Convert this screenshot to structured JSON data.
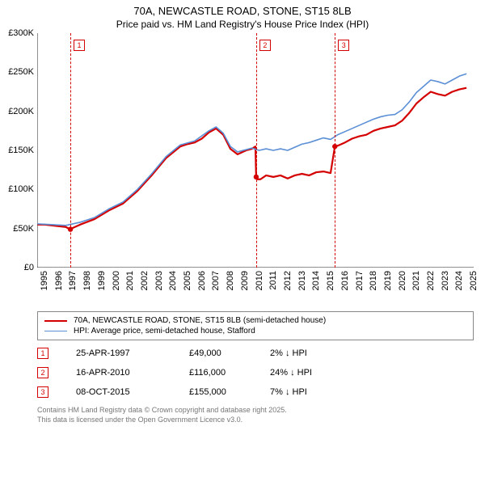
{
  "title": "70A, NEWCASTLE ROAD, STONE, ST15 8LB",
  "subtitle": "Price paid vs. HM Land Registry's House Price Index (HPI)",
  "chart": {
    "type": "line",
    "background_color": "#ffffff",
    "axis_color": "#222222",
    "xlim": [
      1995,
      2025.5
    ],
    "ylim": [
      0,
      300000
    ],
    "ytick_step": 50000,
    "yticks": [
      {
        "v": 0,
        "label": "£0"
      },
      {
        "v": 50000,
        "label": "£50K"
      },
      {
        "v": 100000,
        "label": "£100K"
      },
      {
        "v": 150000,
        "label": "£150K"
      },
      {
        "v": 200000,
        "label": "£200K"
      },
      {
        "v": 250000,
        "label": "£250K"
      },
      {
        "v": 300000,
        "label": "£300K"
      }
    ],
    "xticks": [
      1995,
      1996,
      1997,
      1998,
      1999,
      2000,
      2001,
      2002,
      2003,
      2004,
      2005,
      2006,
      2007,
      2008,
      2009,
      2010,
      2011,
      2012,
      2013,
      2014,
      2015,
      2016,
      2017,
      2018,
      2019,
      2020,
      2021,
      2022,
      2023,
      2024,
      2025
    ],
    "label_fontsize": 11,
    "series": [
      {
        "id": "price_paid",
        "label": "70A, NEWCASTLE ROAD, STONE, ST15 8LB (semi-detached house)",
        "color": "#d40000",
        "line_width": 2.2,
        "points": [
          [
            1995,
            55000
          ],
          [
            1995.5,
            55000
          ],
          [
            1996,
            54000
          ],
          [
            1996.5,
            53000
          ],
          [
            1997,
            52000
          ],
          [
            1997.3,
            49000
          ],
          [
            1997.32,
            49000
          ],
          [
            1997.4,
            50000
          ],
          [
            1998,
            55000
          ],
          [
            1999,
            62000
          ],
          [
            2000,
            73000
          ],
          [
            2001,
            82000
          ],
          [
            2002,
            98000
          ],
          [
            2003,
            118000
          ],
          [
            2004,
            140000
          ],
          [
            2005,
            155000
          ],
          [
            2005.5,
            158000
          ],
          [
            2006,
            160000
          ],
          [
            2006.5,
            165000
          ],
          [
            2007,
            173000
          ],
          [
            2007.5,
            178000
          ],
          [
            2008,
            170000
          ],
          [
            2008.5,
            152000
          ],
          [
            2009,
            145000
          ],
          [
            2009.6,
            150000
          ],
          [
            2010,
            152000
          ],
          [
            2010.25,
            155000
          ],
          [
            2010.3,
            116000
          ],
          [
            2010.35,
            116000
          ],
          [
            2010.4,
            113000
          ],
          [
            2010.6,
            113000
          ],
          [
            2011,
            118000
          ],
          [
            2011.5,
            116000
          ],
          [
            2012,
            118000
          ],
          [
            2012.5,
            114000
          ],
          [
            2013,
            118000
          ],
          [
            2013.5,
            120000
          ],
          [
            2014,
            118000
          ],
          [
            2014.5,
            122000
          ],
          [
            2015,
            123000
          ],
          [
            2015.5,
            121000
          ],
          [
            2015.8,
            155000
          ],
          [
            2015.85,
            155000
          ],
          [
            2016,
            156000
          ],
          [
            2016.5,
            160000
          ],
          [
            2017,
            165000
          ],
          [
            2017.5,
            168000
          ],
          [
            2018,
            170000
          ],
          [
            2018.5,
            175000
          ],
          [
            2019,
            178000
          ],
          [
            2019.5,
            180000
          ],
          [
            2020,
            182000
          ],
          [
            2020.5,
            188000
          ],
          [
            2021,
            198000
          ],
          [
            2021.5,
            210000
          ],
          [
            2022,
            218000
          ],
          [
            2022.5,
            225000
          ],
          [
            2023,
            222000
          ],
          [
            2023.5,
            220000
          ],
          [
            2024,
            225000
          ],
          [
            2024.5,
            228000
          ],
          [
            2025,
            230000
          ]
        ],
        "markers": [
          [
            1997.32,
            49000
          ],
          [
            2010.3,
            116000
          ],
          [
            2015.8,
            155000
          ]
        ]
      },
      {
        "id": "hpi",
        "label": "HPI: Average price, semi-detached house, Stafford",
        "color": "#5b8fd6",
        "line_width": 1.6,
        "points": [
          [
            1995,
            56000
          ],
          [
            1996,
            55000
          ],
          [
            1997,
            54000
          ],
          [
            1998,
            58000
          ],
          [
            1999,
            64000
          ],
          [
            2000,
            75000
          ],
          [
            2001,
            84000
          ],
          [
            2002,
            100000
          ],
          [
            2003,
            120000
          ],
          [
            2004,
            142000
          ],
          [
            2005,
            157000
          ],
          [
            2006,
            162000
          ],
          [
            2007,
            175000
          ],
          [
            2007.5,
            180000
          ],
          [
            2008,
            172000
          ],
          [
            2008.5,
            155000
          ],
          [
            2009,
            148000
          ],
          [
            2010,
            153000
          ],
          [
            2010.5,
            150000
          ],
          [
            2011,
            152000
          ],
          [
            2011.5,
            150000
          ],
          [
            2012,
            152000
          ],
          [
            2012.5,
            150000
          ],
          [
            2013,
            154000
          ],
          [
            2013.5,
            158000
          ],
          [
            2014,
            160000
          ],
          [
            2014.5,
            163000
          ],
          [
            2015,
            166000
          ],
          [
            2015.5,
            164000
          ],
          [
            2016,
            170000
          ],
          [
            2016.5,
            174000
          ],
          [
            2017,
            178000
          ],
          [
            2017.5,
            182000
          ],
          [
            2018,
            186000
          ],
          [
            2018.5,
            190000
          ],
          [
            2019,
            193000
          ],
          [
            2019.5,
            195000
          ],
          [
            2020,
            196000
          ],
          [
            2020.5,
            202000
          ],
          [
            2021,
            212000
          ],
          [
            2021.5,
            224000
          ],
          [
            2022,
            232000
          ],
          [
            2022.5,
            240000
          ],
          [
            2023,
            238000
          ],
          [
            2023.5,
            235000
          ],
          [
            2024,
            240000
          ],
          [
            2024.5,
            245000
          ],
          [
            2025,
            248000
          ]
        ]
      }
    ],
    "event_markers": [
      {
        "n": "1",
        "x": 1997.32,
        "color": "#d40000"
      },
      {
        "n": "2",
        "x": 2010.3,
        "color": "#d40000"
      },
      {
        "n": "3",
        "x": 2015.8,
        "color": "#d40000"
      }
    ]
  },
  "legend": {
    "border_color": "#888888",
    "items": [
      {
        "color": "#d40000",
        "width": 2.2,
        "label": "70A, NEWCASTLE ROAD, STONE, ST15 8LB (semi-detached house)"
      },
      {
        "color": "#5b8fd6",
        "width": 1.6,
        "label": "HPI: Average price, semi-detached house, Stafford"
      }
    ]
  },
  "events": [
    {
      "n": "1",
      "color": "#d40000",
      "date": "25-APR-1997",
      "price": "£49,000",
      "pct": "2% ↓ HPI"
    },
    {
      "n": "2",
      "color": "#d40000",
      "date": "16-APR-2010",
      "price": "£116,000",
      "pct": "24% ↓ HPI"
    },
    {
      "n": "3",
      "color": "#d40000",
      "date": "08-OCT-2015",
      "price": "£155,000",
      "pct": "7% ↓ HPI"
    }
  ],
  "footer": {
    "line1": "Contains HM Land Registry data © Crown copyright and database right 2025.",
    "line2": "This data is licensed under the Open Government Licence v3.0."
  }
}
